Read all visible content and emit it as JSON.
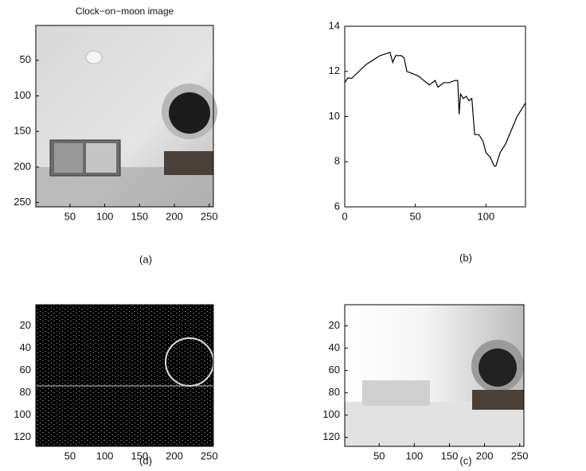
{
  "chart_data": [
    {
      "type": "image",
      "title": "Clock−on−moon image",
      "caption": "(a)",
      "xlim": [
        1,
        256
      ],
      "ylim": [
        1,
        256
      ],
      "y_reversed": true,
      "xticks": [
        50,
        100,
        150,
        200,
        250
      ],
      "yticks": [
        50,
        100,
        150,
        200,
        250
      ]
    },
    {
      "type": "line",
      "caption": "(b)",
      "color": "#000000",
      "xlim": [
        0,
        128
      ],
      "ylim": [
        6,
        14
      ],
      "xticks": [
        0,
        50,
        100
      ],
      "yticks": [
        6,
        8,
        10,
        12,
        14
      ],
      "x": [
        0,
        2,
        5,
        10,
        15,
        20,
        25,
        30,
        32,
        34,
        36,
        40,
        42,
        44,
        48,
        52,
        56,
        60,
        64,
        66,
        70,
        74,
        78,
        80,
        81,
        82,
        84,
        86,
        88,
        90,
        92,
        95,
        98,
        100,
        103,
        106,
        107,
        110,
        114,
        118,
        122,
        126,
        128
      ],
      "values": [
        11.5,
        11.7,
        11.7,
        12.0,
        12.3,
        12.5,
        12.7,
        12.8,
        12.85,
        12.4,
        12.7,
        12.7,
        12.6,
        12.0,
        11.9,
        11.8,
        11.6,
        11.4,
        11.6,
        11.3,
        11.5,
        11.5,
        11.6,
        11.6,
        10.1,
        11.0,
        10.8,
        10.9,
        10.7,
        10.8,
        9.2,
        9.2,
        8.9,
        8.4,
        8.2,
        7.8,
        7.8,
        8.4,
        8.8,
        9.4,
        10.0,
        10.4,
        10.6
      ]
    },
    {
      "type": "image",
      "caption": "(d)",
      "xlim": [
        1,
        256
      ],
      "ylim": [
        1,
        128
      ],
      "y_reversed": true,
      "xticks": [
        50,
        100,
        150,
        200,
        250
      ],
      "yticks": [
        20,
        40,
        60,
        80,
        100,
        120
      ]
    },
    {
      "type": "image",
      "caption": "(c)",
      "xlim": [
        1,
        256
      ],
      "ylim": [
        1,
        128
      ],
      "y_reversed": true,
      "xticks": [
        50,
        100,
        150,
        200,
        250
      ],
      "yticks": [
        20,
        40,
        60,
        80,
        100,
        120
      ]
    }
  ]
}
